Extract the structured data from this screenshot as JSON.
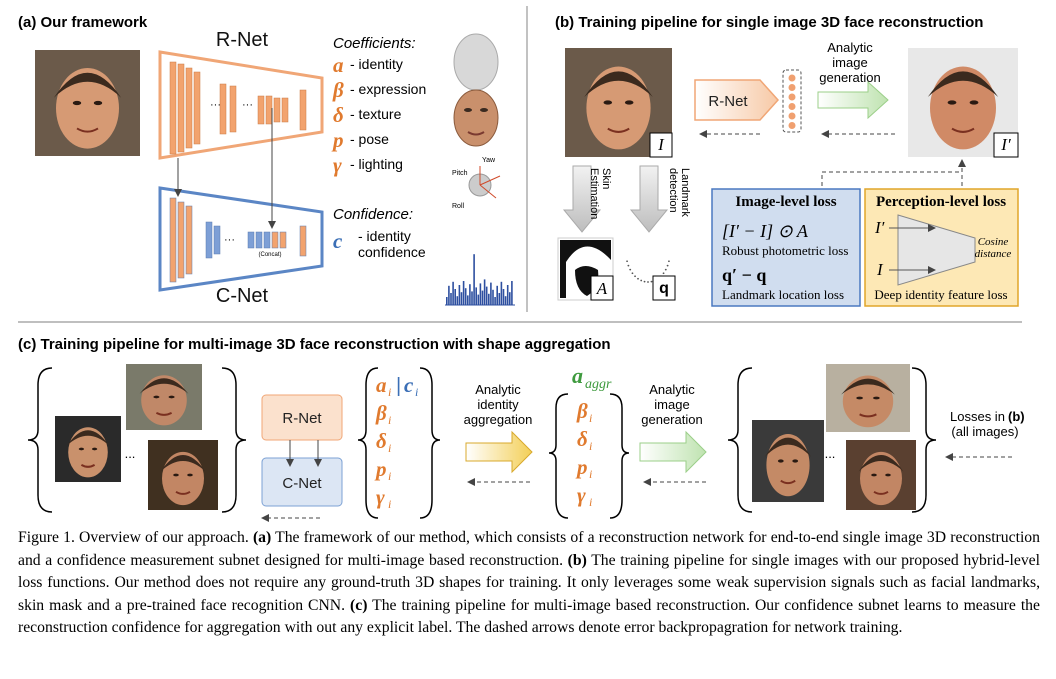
{
  "panel_a": {
    "title": "(a) Our framework",
    "r_net": "R-Net",
    "c_net": "C-Net",
    "ellipsis": "···",
    "concat": "(Concat)",
    "coefficients_heading": "Coefficients:",
    "coefficients": [
      {
        "symbol": "a",
        "label": "- identity"
      },
      {
        "symbol": "β",
        "label": "- expression"
      },
      {
        "symbol": "δ",
        "label": "- texture"
      },
      {
        "symbol": "p",
        "label": "- pose"
      },
      {
        "symbol": "γ",
        "label": "- lighting"
      }
    ],
    "confidence_heading": "Confidence:",
    "confidence": {
      "symbol": "c",
      "label_lines": [
        "- identity",
        "confidence"
      ]
    },
    "pose_axes": [
      "Yaw",
      "Pitch",
      "Roll"
    ]
  },
  "panel_b": {
    "title": "(b) Training pipeline for single image 3D face reconstruction",
    "r_net": "R-Net",
    "generation_label": [
      "Analytic",
      "image",
      "generation"
    ],
    "input_label": "I",
    "output_label": "I′",
    "skin_estimation": [
      "Skin",
      "Estimation"
    ],
    "landmark_detection": [
      "Landmark",
      "detection"
    ],
    "mask_label": "A",
    "landmarks_label": "q",
    "image_level_loss": {
      "title": "Image-level loss",
      "photometric_formula": "[I′ − I] ⊙ A",
      "photometric": "Robust photometric loss",
      "landmark_formula": "q′ − q",
      "landmark": "Landmark location loss"
    },
    "perception_level_loss": {
      "title": "Perception-level loss",
      "input_top": "I′",
      "input_bottom": "I",
      "cosine": [
        "Cosine",
        "distance"
      ],
      "caption": "Deep identity feature loss"
    }
  },
  "panel_c": {
    "title": "(c) Training pipeline for multi-image 3D face reconstruction with shape aggregation",
    "ellipsis": "...",
    "r_net": "R-Net",
    "c_net": "C-Net",
    "identity_confidence": {
      "symbol": "a",
      "subscript": "i",
      "separator": "|",
      "symbol2": "c",
      "subscript2": "i"
    },
    "coefficients_in": [
      {
        "symbol": "β",
        "subscript": "i"
      },
      {
        "symbol": "δ",
        "subscript": "i"
      },
      {
        "symbol": "p",
        "subscript": "i"
      },
      {
        "symbol": "γ",
        "subscript": "i"
      }
    ],
    "aggregation_label": [
      "Analytic",
      "identity",
      "aggregation"
    ],
    "aggregated": {
      "symbol": "a",
      "subscript": "aggr"
    },
    "coefficients_out": [
      {
        "symbol": "β",
        "subscript": "i"
      },
      {
        "symbol": "δ",
        "subscript": "i"
      },
      {
        "symbol": "p",
        "subscript": "i"
      },
      {
        "symbol": "γ",
        "subscript": "i"
      }
    ],
    "generation_label": [
      "Analytic",
      "image",
      "generation"
    ],
    "losses_label": [
      "Losses in",
      "(b)",
      "(all images)"
    ]
  },
  "caption": [
    {
      "text": "Figure 1. Overview of our approach. ",
      "bold": false
    },
    {
      "text": "(a)",
      "bold": true
    },
    {
      "text": " The framework of our method, which consists of a reconstruction network for end-to-end single image 3D reconstruction and a confidence measurement subnet designed for multi-image based reconstruction. ",
      "bold": false
    },
    {
      "text": "(b)",
      "bold": true
    },
    {
      "text": " The training pipeline for single images with our proposed hybrid-level loss functions. Our method does not require any ground-truth 3D shapes for training. It only leverages some weak supervision signals such as facial landmarks, skin mask and a pre-trained face recognition CNN. ",
      "bold": false
    },
    {
      "text": "(c)",
      "bold": true
    },
    {
      "text": " The training pipeline for multi-image based reconstruction. Our confidence subnet learns to measure the reconstruction confidence for aggregation with out any explicit label. The dashed arrows denote error backpropagration for network training.",
      "bold": false
    }
  ]
}
